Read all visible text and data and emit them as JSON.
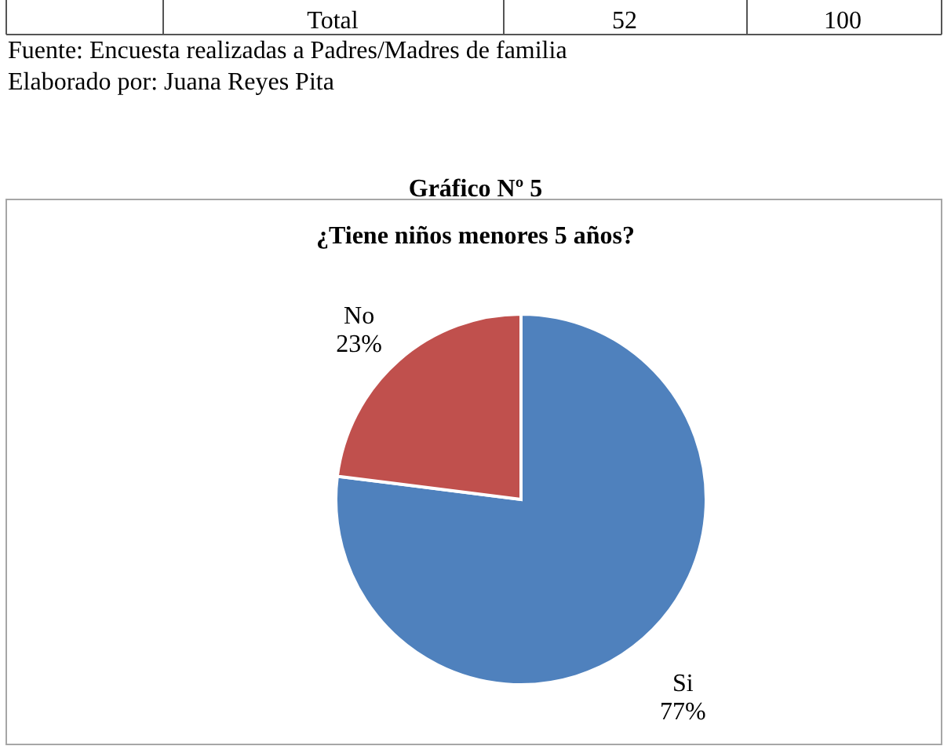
{
  "chart_data": {
    "type": "pie",
    "title": "¿Tiene niños menores 5 años?",
    "categories": [
      "Si",
      "No"
    ],
    "values": [
      77,
      23
    ],
    "colors": [
      "#4f81bd",
      "#c0504d"
    ],
    "value_labels": [
      "77%",
      "23%"
    ],
    "annotations": [
      "Total",
      "52",
      "100",
      "Fuente: Encuesta realizadas a Padres/Madres de familia",
      "Elaborado por: Juana Reyes Pita",
      "Gráfico Nº 5"
    ]
  }
}
